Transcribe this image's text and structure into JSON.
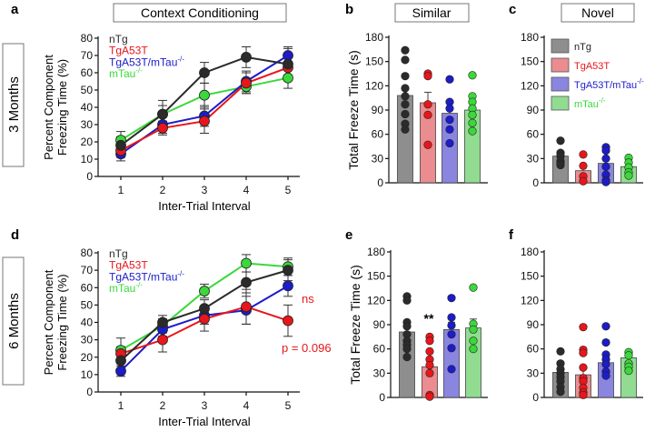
{
  "panel_labels": {
    "a": "a",
    "b": "b",
    "c": "c",
    "d": "d",
    "e": "e",
    "f": "f"
  },
  "titles": {
    "context": "Context Conditioning",
    "similar": "Similar",
    "novel": "Novel"
  },
  "row_labels": {
    "row1": "3 Months",
    "row2": "6 Months"
  },
  "annotations": {
    "ns": "ns",
    "pvalue": "p = 0.096",
    "sig": "**"
  },
  "groups": [
    {
      "name": "nTg",
      "sup": "",
      "color": "#2b2b2b",
      "fill": "#8e8e8e"
    },
    {
      "name": "TgA53T",
      "sup": "",
      "color": "#e8161b",
      "fill": "#ea8c90"
    },
    {
      "name": "TgA53T/mTau",
      "sup": "-/-",
      "color": "#1c1cc8",
      "fill": "#8a86e0"
    },
    {
      "name": "mTau",
      "sup": "-/-",
      "color": "#3ad83a",
      "fill": "#92dc92"
    }
  ],
  "chart_data": [
    {
      "id": "a",
      "type": "line",
      "xlabel": "Inter-Trial Interval",
      "ylabel": [
        "Percent Component",
        "Freezing Time (%)"
      ],
      "x": [
        1,
        2,
        3,
        4,
        5
      ],
      "ylim": [
        0,
        80
      ],
      "yticks": [
        0,
        10,
        20,
        30,
        40,
        50,
        60,
        70,
        80
      ],
      "series": [
        {
          "name": "nTg",
          "values": [
            18,
            36,
            60,
            69,
            65
          ],
          "err": [
            5,
            8,
            6,
            6,
            9
          ]
        },
        {
          "name": "TgA53T",
          "values": [
            15,
            28,
            32,
            54,
            63
          ],
          "err": [
            4,
            4,
            7,
            6,
            7
          ]
        },
        {
          "name": "TgA53T/mTau-/-",
          "values": [
            13,
            30,
            35,
            55,
            70
          ],
          "err": [
            4,
            5,
            6,
            6,
            5
          ]
        },
        {
          "name": "mTau-/-",
          "values": [
            21,
            36,
            47,
            52,
            57
          ],
          "err": [
            5,
            5,
            7,
            4,
            6
          ]
        }
      ]
    },
    {
      "id": "b",
      "type": "bar",
      "ylabel": "Total Freeze Time (s)",
      "ylim": [
        0,
        180
      ],
      "yticks": [
        0,
        30,
        60,
        90,
        120,
        150,
        180
      ],
      "values": [
        108,
        99,
        86,
        90
      ],
      "err": [
        10,
        13,
        7,
        8
      ],
      "points": [
        [
          164,
          152,
          132,
          117,
          107,
          97,
          85,
          73,
          66
        ],
        [
          135,
          132,
          97,
          84,
          47
        ],
        [
          128,
          100,
          92,
          78,
          66,
          49
        ],
        [
          133,
          107,
          100,
          92,
          84,
          74,
          64
        ]
      ]
    },
    {
      "id": "c",
      "type": "bar",
      "ylim": [
        0,
        180
      ],
      "yticks": [
        0,
        30,
        60,
        90,
        120,
        150,
        180
      ],
      "values": [
        33,
        15,
        24,
        20
      ],
      "err": [
        4,
        5,
        6,
        3
      ],
      "points": [
        [
          52,
          37,
          33,
          27,
          24,
          22
        ],
        [
          35,
          21,
          8,
          2
        ],
        [
          44,
          40,
          30,
          20,
          10,
          3,
          1
        ],
        [
          31,
          25,
          19,
          13,
          9
        ]
      ]
    },
    {
      "id": "d",
      "type": "line",
      "xlabel": "Inter-Trial Interval",
      "ylabel": [
        "Percent Component",
        "Freezing Time (%)"
      ],
      "x": [
        1,
        2,
        3,
        4,
        5
      ],
      "ylim": [
        0,
        80
      ],
      "yticks": [
        0,
        10,
        20,
        30,
        40,
        50,
        60,
        70,
        80
      ],
      "series": [
        {
          "name": "nTg",
          "values": [
            18,
            40,
            48,
            63,
            70
          ],
          "err": [
            5,
            4,
            5,
            6,
            6
          ]
        },
        {
          "name": "TgA53T",
          "values": [
            22,
            30,
            42,
            49,
            41
          ],
          "err": [
            4,
            7,
            7,
            10,
            9
          ]
        },
        {
          "name": "TgA53T/mTau-/-",
          "values": [
            12,
            36,
            44,
            47,
            61
          ],
          "err": [
            3,
            4,
            5,
            8,
            6
          ]
        },
        {
          "name": "mTau-/-",
          "values": [
            24,
            38,
            58,
            74,
            72
          ],
          "err": [
            7,
            4,
            4,
            5,
            5
          ]
        }
      ]
    },
    {
      "id": "e",
      "type": "bar",
      "ylabel": "Total Freeze Time (s)",
      "ylim": [
        0,
        180
      ],
      "yticks": [
        0,
        30,
        60,
        90,
        120,
        150,
        180
      ],
      "values": [
        81,
        38,
        84,
        86
      ],
      "err": [
        8,
        9,
        9,
        11
      ],
      "points": [
        [
          125,
          120,
          93,
          88,
          78,
          70,
          65,
          60,
          50
        ],
        [
          75,
          70,
          57,
          47,
          40,
          30,
          3,
          1
        ],
        [
          123,
          99,
          89,
          78,
          61,
          35
        ],
        [
          136,
          91,
          84,
          70,
          60
        ]
      ]
    },
    {
      "id": "f",
      "type": "bar",
      "ylim": [
        0,
        180
      ],
      "yticks": [
        0,
        30,
        60,
        90,
        120,
        150,
        180
      ],
      "values": [
        31,
        28,
        43,
        49
      ],
      "err": [
        5,
        9,
        7,
        5
      ],
      "points": [
        [
          57,
          42,
          35,
          30,
          25,
          20,
          13,
          7
        ],
        [
          87,
          59,
          55,
          37,
          24,
          20,
          12,
          6,
          3
        ],
        [
          88,
          68,
          53,
          47,
          41,
          32,
          27
        ],
        [
          56,
          52,
          42,
          38,
          33
        ]
      ]
    }
  ]
}
